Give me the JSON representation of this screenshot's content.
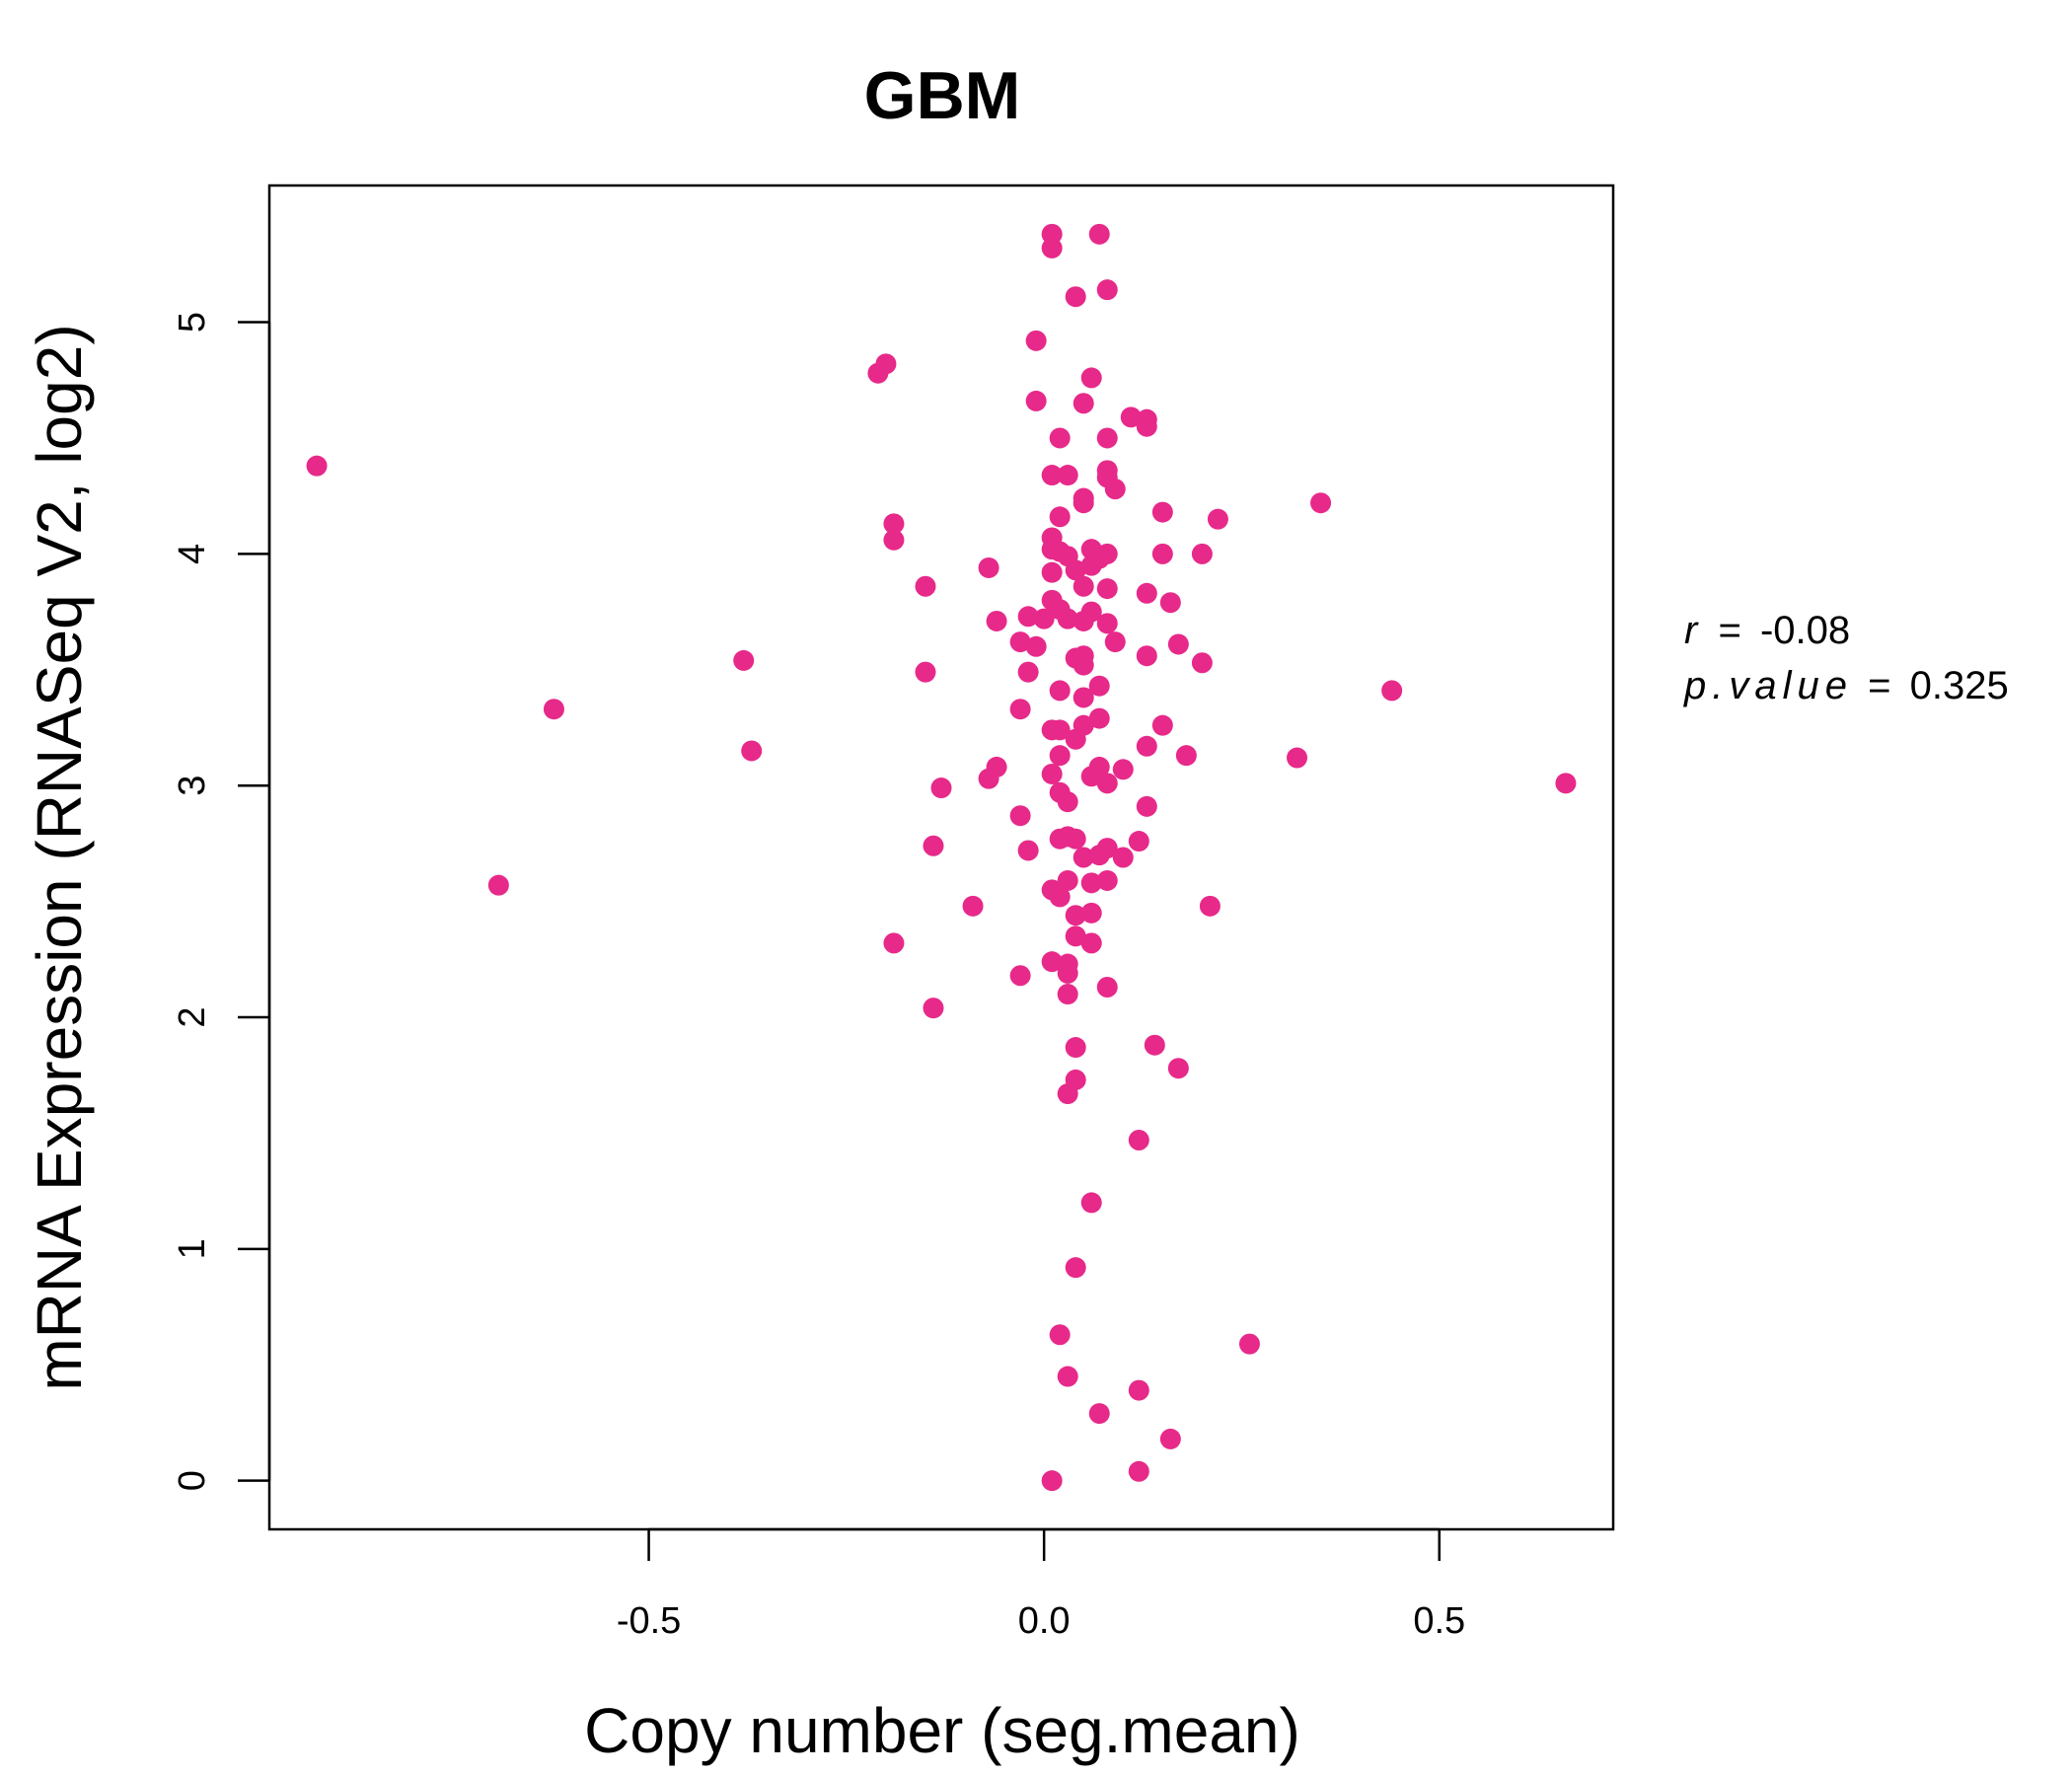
{
  "chart_data": {
    "type": "scatter",
    "title": "GBM",
    "xlabel": "Copy number (seg.mean)",
    "ylabel": "mRNA Expression (RNASeq V2, log2)",
    "xlim": [
      -0.98,
      0.72
    ],
    "ylim": [
      -0.21,
      5.59
    ],
    "xticks": [
      {
        "value": -0.5,
        "label": "-0.5"
      },
      {
        "value": 0.0,
        "label": "0.0"
      },
      {
        "value": 0.5,
        "label": "0.5"
      }
    ],
    "yticks": [
      {
        "value": 0,
        "label": "0"
      },
      {
        "value": 1,
        "label": "1"
      },
      {
        "value": 2,
        "label": "2"
      },
      {
        "value": 3,
        "label": "3"
      },
      {
        "value": 4,
        "label": "4"
      },
      {
        "value": 5,
        "label": "5"
      }
    ],
    "grid": false,
    "colors": {
      "accent": "#E7298A",
      "title": "#E7298A",
      "axis": "#000000"
    },
    "stats": {
      "r_label": "r",
      "r_value": "-0.08",
      "p_label": "p.value",
      "p_value": "0.325",
      "equals": "="
    },
    "points": [
      [
        -0.92,
        4.38
      ],
      [
        -0.69,
        2.57
      ],
      [
        -0.62,
        3.33
      ],
      [
        -0.38,
        3.54
      ],
      [
        -0.37,
        3.15
      ],
      [
        -0.21,
        4.78
      ],
      [
        -0.2,
        4.82
      ],
      [
        -0.19,
        4.13
      ],
      [
        -0.19,
        4.06
      ],
      [
        -0.19,
        2.32
      ],
      [
        -0.15,
        3.86
      ],
      [
        -0.15,
        3.49
      ],
      [
        -0.14,
        2.04
      ],
      [
        -0.14,
        2.74
      ],
      [
        -0.13,
        2.99
      ],
      [
        -0.09,
        2.48
      ],
      [
        -0.07,
        3.94
      ],
      [
        -0.06,
        3.71
      ],
      [
        -0.06,
        3.08
      ],
      [
        -0.07,
        3.03
      ],
      [
        -0.03,
        3.62
      ],
      [
        -0.03,
        2.87
      ],
      [
        -0.03,
        3.33
      ],
      [
        -0.02,
        2.72
      ],
      [
        -0.03,
        2.18
      ],
      [
        -0.02,
        3.49
      ],
      [
        -0.02,
        3.73
      ],
      [
        -0.01,
        3.6
      ],
      [
        0.0,
        3.72
      ],
      [
        -0.01,
        4.92
      ],
      [
        -0.01,
        4.66
      ],
      [
        0.01,
        5.38
      ],
      [
        0.01,
        5.32
      ],
      [
        0.07,
        5.38
      ],
      [
        0.08,
        5.14
      ],
      [
        0.04,
        5.11
      ],
      [
        0.06,
        4.76
      ],
      [
        0.05,
        4.65
      ],
      [
        0.11,
        4.59
      ],
      [
        0.13,
        4.58
      ],
      [
        0.13,
        4.55
      ],
      [
        0.08,
        4.5
      ],
      [
        0.02,
        4.5
      ],
      [
        0.01,
        4.34
      ],
      [
        0.03,
        4.34
      ],
      [
        0.08,
        4.36
      ],
      [
        0.08,
        4.33
      ],
      [
        0.09,
        4.28
      ],
      [
        0.05,
        4.22
      ],
      [
        0.05,
        4.24
      ],
      [
        0.02,
        4.16
      ],
      [
        0.15,
        4.18
      ],
      [
        0.22,
        4.15
      ],
      [
        0.35,
        4.22
      ],
      [
        0.01,
        4.07
      ],
      [
        0.01,
        4.02
      ],
      [
        0.02,
        4.01
      ],
      [
        0.03,
        3.99
      ],
      [
        0.06,
        4.02
      ],
      [
        0.07,
        3.98
      ],
      [
        0.08,
        4.0
      ],
      [
        0.15,
        4.0
      ],
      [
        0.2,
        4.0
      ],
      [
        0.01,
        3.92
      ],
      [
        0.04,
        3.93
      ],
      [
        0.06,
        3.95
      ],
      [
        0.05,
        3.86
      ],
      [
        0.08,
        3.85
      ],
      [
        0.13,
        3.83
      ],
      [
        0.16,
        3.79
      ],
      [
        0.01,
        3.8
      ],
      [
        0.02,
        3.76
      ],
      [
        0.03,
        3.72
      ],
      [
        0.05,
        3.71
      ],
      [
        0.06,
        3.75
      ],
      [
        0.08,
        3.7
      ],
      [
        0.09,
        3.62
      ],
      [
        0.13,
        3.56
      ],
      [
        0.17,
        3.61
      ],
      [
        0.2,
        3.53
      ],
      [
        0.04,
        3.55
      ],
      [
        0.05,
        3.56
      ],
      [
        0.05,
        3.52
      ],
      [
        0.05,
        3.38
      ],
      [
        0.07,
        3.43
      ],
      [
        0.02,
        3.41
      ],
      [
        0.01,
        3.24
      ],
      [
        0.02,
        3.24
      ],
      [
        0.04,
        3.2
      ],
      [
        0.05,
        3.26
      ],
      [
        0.07,
        3.29
      ],
      [
        0.13,
        3.17
      ],
      [
        0.15,
        3.26
      ],
      [
        0.18,
        3.13
      ],
      [
        0.02,
        3.13
      ],
      [
        0.01,
        3.05
      ],
      [
        0.06,
        3.04
      ],
      [
        0.07,
        3.08
      ],
      [
        0.08,
        3.01
      ],
      [
        0.1,
        3.07
      ],
      [
        0.02,
        2.97
      ],
      [
        0.03,
        2.93
      ],
      [
        0.13,
        2.91
      ],
      [
        0.32,
        3.12
      ],
      [
        0.44,
        3.41
      ],
      [
        0.66,
        3.01
      ],
      [
        0.02,
        2.77
      ],
      [
        0.03,
        2.78
      ],
      [
        0.04,
        2.77
      ],
      [
        0.05,
        2.69
      ],
      [
        0.07,
        2.7
      ],
      [
        0.08,
        2.73
      ],
      [
        0.1,
        2.69
      ],
      [
        0.12,
        2.76
      ],
      [
        0.01,
        2.55
      ],
      [
        0.03,
        2.59
      ],
      [
        0.06,
        2.58
      ],
      [
        0.08,
        2.59
      ],
      [
        0.02,
        2.52
      ],
      [
        0.04,
        2.44
      ],
      [
        0.06,
        2.45
      ],
      [
        0.21,
        2.48
      ],
      [
        0.04,
        2.35
      ],
      [
        0.06,
        2.32
      ],
      [
        0.01,
        2.24
      ],
      [
        0.03,
        2.23
      ],
      [
        0.03,
        2.19
      ],
      [
        0.03,
        2.1
      ],
      [
        0.08,
        2.13
      ],
      [
        0.04,
        1.87
      ],
      [
        0.14,
        1.88
      ],
      [
        0.04,
        1.73
      ],
      [
        0.03,
        1.67
      ],
      [
        0.17,
        1.78
      ],
      [
        0.12,
        1.47
      ],
      [
        0.06,
        1.2
      ],
      [
        0.04,
        0.92
      ],
      [
        0.26,
        0.59
      ],
      [
        0.02,
        0.63
      ],
      [
        0.03,
        0.45
      ],
      [
        0.12,
        0.39
      ],
      [
        0.07,
        0.29
      ],
      [
        0.16,
        0.18
      ],
      [
        0.12,
        0.04
      ],
      [
        0.01,
        0.0
      ]
    ]
  }
}
